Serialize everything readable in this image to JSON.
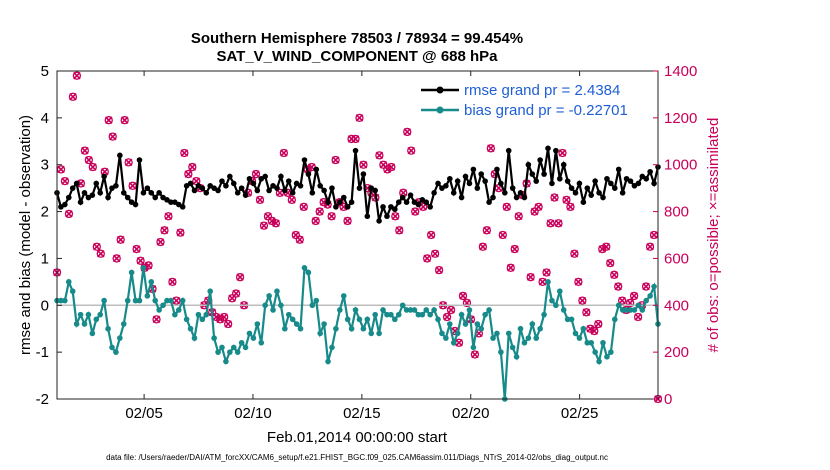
{
  "chart_data": {
    "type": "line",
    "title": "Southern Hemisphere 78503 / 78934 = 99.454%",
    "subtitle": "SAT_V_WIND_COMPONENT @ 688 hPa",
    "xlabel": "Feb.01,2014 00:00:00 start",
    "ylabel": "rmse and bias (model - observation)",
    "y2label": "# of obs: o=possible; ×=assimilated",
    "footer": "data file: /Users/raeder/DAI/ATM_forcXX/CAM6_setup/f.e21.FHIST_BGC.f09_025.CAM6assim.011/Diags_NTrS_2014-02/obs_diag_output.nc",
    "xlim": [
      1,
      28.6
    ],
    "ylim": [
      -2,
      5
    ],
    "y2lim": [
      0,
      1400
    ],
    "x_ticks": [
      {
        "x": 5,
        "label": "02/05"
      },
      {
        "x": 10,
        "label": "02/10"
      },
      {
        "x": 15,
        "label": "02/15"
      },
      {
        "x": 20,
        "label": "02/20"
      },
      {
        "x": 25,
        "label": "02/25"
      }
    ],
    "y_ticks": [
      "-2",
      "-1",
      "0",
      "1",
      "2",
      "3",
      "4",
      "5"
    ],
    "y2_ticks": [
      "0",
      "200",
      "400",
      "600",
      "800",
      "1000",
      "1200",
      "1400"
    ],
    "legend_position": "top-right",
    "series": [
      {
        "name": "rmse grand pr = 2.4384",
        "color": "#000000",
        "marker": "circle",
        "axis": "left",
        "values": [
          2.4,
          2.1,
          2.15,
          2.3,
          2.5,
          2.6,
          2.2,
          2.4,
          2.3,
          2.35,
          2.6,
          2.4,
          2.75,
          2.3,
          2.5,
          2.55,
          3.2,
          2.4,
          2.3,
          2.2,
          2.15,
          3.1,
          2.4,
          2.5,
          2.4,
          2.3,
          2.4,
          2.3,
          2.25,
          2.2,
          2.2,
          2.15,
          2.1,
          2.55,
          2.6,
          2.45,
          2.55,
          2.5,
          2.4,
          2.55,
          2.5,
          2.45,
          2.65,
          2.55,
          2.75,
          2.6,
          2.4,
          2.5,
          2.35,
          2.7,
          2.6,
          2.45,
          2.7,
          2.75,
          2.45,
          2.55,
          2.5,
          2.75,
          2.45,
          2.65,
          2.4,
          2.6,
          2.55,
          3.1,
          2.8,
          2.4,
          2.9,
          2.55,
          2.45,
          2.2,
          2.5,
          2.1,
          2.2,
          2.3,
          2.1,
          2.2,
          3.3,
          2.5,
          2.8,
          1.9,
          2.5,
          2.45,
          1.8,
          2.1,
          1.9,
          2.1,
          2.05,
          2.2,
          2.3,
          2.2,
          2.35,
          2.2,
          2.15,
          2.25,
          2.2,
          2.1,
          2.4,
          2.6,
          2.5,
          2.55,
          2.7,
          2.4,
          2.65,
          2.3,
          2.75,
          2.6,
          2.9,
          2.5,
          2.8,
          2.65,
          2.2,
          2.3,
          2.9,
          2.6,
          2.4,
          3.3,
          2.5,
          2.3,
          2.4,
          2.3,
          3.0,
          2.8,
          2.65,
          3.1,
          2.8,
          3.35,
          2.6,
          3.3,
          2.7,
          3.0,
          2.65,
          2.5,
          2.4,
          2.6,
          2.2,
          2.5,
          2.35,
          2.65,
          2.4,
          2.3,
          2.7,
          2.6,
          2.5,
          2.9,
          2.4,
          2.7,
          2.65,
          2.55,
          2.6,
          2.75,
          2.7,
          2.85,
          2.6,
          2.95
        ]
      },
      {
        "name": "bias grand pr = -0.22701",
        "color": "#178a8a",
        "marker": "circle",
        "axis": "left",
        "values": [
          0.1,
          0.1,
          0.1,
          0.5,
          0.3,
          -0.4,
          -0.2,
          -0.4,
          -0.2,
          -0.6,
          -0.3,
          -0.2,
          0.1,
          -0.5,
          -0.9,
          -1.0,
          -0.7,
          -0.4,
          0.1,
          0.7,
          0.1,
          0.1,
          0.8,
          0.2,
          0.5,
          0.1,
          -0.1,
          0.0,
          0.1,
          0.1,
          -0.2,
          -0.1,
          0.1,
          -0.3,
          -0.5,
          -0.7,
          -0.2,
          -0.3,
          -0.2,
          0.3,
          -0.7,
          -1.0,
          -0.9,
          -1.2,
          -1.0,
          -0.9,
          -1.0,
          -0.8,
          -0.9,
          -0.6,
          -0.7,
          -0.4,
          -0.8,
          0.0,
          0.2,
          -0.1,
          0.3,
          0.0,
          -0.5,
          -0.2,
          -0.3,
          -0.4,
          -0.5,
          0.8,
          0.7,
          0.0,
          0.1,
          -0.6,
          -0.4,
          -1.2,
          -0.9,
          -0.5,
          -0.1,
          0.2,
          -0.3,
          -0.5,
          -0.1,
          -0.3,
          -0.5,
          -0.3,
          -0.6,
          -0.2,
          -0.6,
          -0.1,
          -0.2,
          -0.2,
          -0.3,
          -0.2,
          0.0,
          -0.1,
          -0.1,
          -0.1,
          -0.2,
          -0.2,
          -0.1,
          -0.2,
          -0.1,
          -0.3,
          -0.6,
          -0.7,
          -0.4,
          -0.8,
          -0.6,
          -0.2,
          -0.4,
          -0.1,
          -0.9,
          -0.4,
          -0.5,
          -0.2,
          -0.1,
          -0.7,
          -0.6,
          -1.0,
          -2.0,
          -0.6,
          -0.9,
          -1.1,
          -0.5,
          -0.8,
          -0.7,
          -0.4,
          -0.7,
          -0.5,
          -0.2,
          0.5,
          0.1,
          0.0,
          0.3,
          -0.1,
          -0.3,
          -0.3,
          -0.6,
          -0.7,
          -0.5,
          -0.8,
          -0.8,
          -1.0,
          -1.2,
          -0.8,
          -1.1,
          -1.0,
          -0.3,
          0.0,
          -0.1,
          -0.1,
          -0.1,
          -0.1,
          0.0,
          -0.1,
          0.1,
          0.2,
          0.4,
          -0.4
        ]
      },
      {
        "name": "possible",
        "color": "#c8005a",
        "marker": "circle",
        "axis": "right",
        "values": [
          540,
          980,
          930,
          790,
          1290,
          1380,
          920,
          1060,
          1020,
          990,
          650,
          620,
          970,
          1190,
          1120,
          600,
          680,
          1190,
          1010,
          910,
          640,
          590,
          560,
          570,
          470,
          340,
          670,
          720,
          780,
          500,
          420,
          710,
          1050,
          960,
          990,
          930,
          900,
          400,
          420,
          370,
          350,
          340,
          350,
          320,
          430,
          450,
          520,
          400,
          880,
          930,
          960,
          850,
          740,
          780,
          760,
          750,
          880,
          1050,
          880,
          850,
          700,
          680,
          820,
          980,
          990,
          760,
          800,
          840,
          830,
          780,
          1020,
          840,
          820,
          760,
          1110,
          1110,
          1200,
          1000,
          900,
          880,
          860,
          1040,
          1000,
          980,
          990,
          780,
          720,
          880,
          1140,
          1060,
          800,
          840,
          820,
          600,
          700,
          620,
          550,
          400,
          350,
          380,
          290,
          240,
          440,
          410,
          340,
          190,
          280,
          650,
          720,
          1070,
          960,
          900,
          700,
          820,
          560,
          640,
          780,
          870,
          920,
          520,
          800,
          820,
          500,
          540,
          750,
          860,
          750,
          1050,
          850,
          820,
          620,
          500,
          420,
          370,
          300,
          290,
          320,
          640,
          650,
          580,
          530,
          480,
          420,
          380,
          410,
          440,
          350,
          400,
          480,
          650,
          700,
          0
        ]
      },
      {
        "name": "assimilated",
        "color": "#c8005a",
        "marker": "x",
        "axis": "right",
        "values": [
          540,
          980,
          930,
          790,
          1290,
          1380,
          920,
          1060,
          1020,
          990,
          650,
          620,
          970,
          1190,
          1120,
          600,
          680,
          1190,
          1010,
          910,
          640,
          590,
          560,
          570,
          470,
          340,
          670,
          720,
          780,
          500,
          420,
          710,
          1050,
          960,
          990,
          930,
          900,
          400,
          420,
          370,
          350,
          340,
          350,
          320,
          430,
          450,
          520,
          400,
          880,
          930,
          960,
          850,
          740,
          780,
          760,
          750,
          880,
          1050,
          880,
          850,
          700,
          680,
          820,
          980,
          990,
          760,
          800,
          840,
          830,
          780,
          1020,
          840,
          820,
          760,
          1110,
          1110,
          1200,
          1000,
          900,
          880,
          860,
          1040,
          1000,
          980,
          990,
          780,
          720,
          880,
          1140,
          1060,
          800,
          840,
          820,
          600,
          700,
          620,
          550,
          400,
          350,
          380,
          290,
          240,
          440,
          410,
          340,
          190,
          280,
          650,
          720,
          1070,
          960,
          900,
          700,
          820,
          560,
          640,
          780,
          870,
          920,
          520,
          800,
          820,
          500,
          540,
          750,
          860,
          750,
          1050,
          850,
          820,
          620,
          500,
          420,
          370,
          300,
          290,
          320,
          640,
          650,
          580,
          530,
          480,
          420,
          380,
          410,
          440,
          350,
          400,
          480,
          650,
          700,
          0
        ]
      }
    ],
    "zero_line": true,
    "grid": false
  }
}
